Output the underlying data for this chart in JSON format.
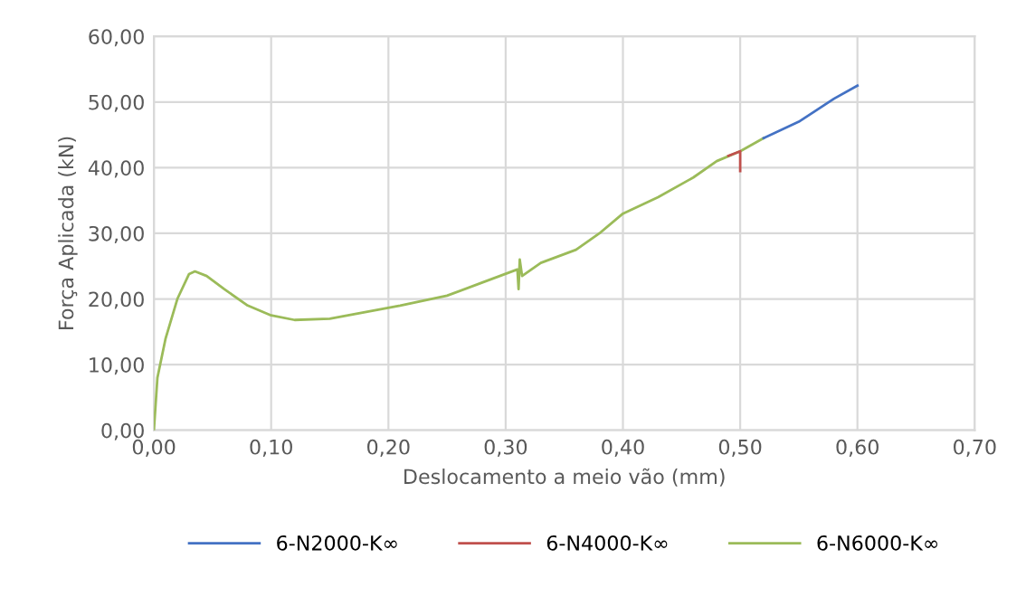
{
  "chart_data": {
    "type": "line",
    "xlabel": "Deslocamento a meio vão (mm)",
    "ylabel": "Força Aplicada (kN)",
    "xlim": [
      0,
      0.7
    ],
    "ylim": [
      0,
      60
    ],
    "xticks": [
      {
        "value": 0,
        "label": "0,00"
      },
      {
        "value": 0.1,
        "label": "0,10"
      },
      {
        "value": 0.2,
        "label": "0,20"
      },
      {
        "value": 0.3,
        "label": "0,30"
      },
      {
        "value": 0.4,
        "label": "0,40"
      },
      {
        "value": 0.5,
        "label": "0,50"
      },
      {
        "value": 0.6,
        "label": "0,60"
      },
      {
        "value": 0.7,
        "label": "0,70"
      }
    ],
    "yticks": [
      {
        "value": 0,
        "label": "0,00"
      },
      {
        "value": 10,
        "label": "10,00"
      },
      {
        "value": 20,
        "label": "20,00"
      },
      {
        "value": 30,
        "label": "30,00"
      },
      {
        "value": 40,
        "label": "40,00"
      },
      {
        "value": 50,
        "label": "50,00"
      },
      {
        "value": 60,
        "label": "60,00"
      }
    ],
    "grid": true,
    "legend": "bottom",
    "marker": "none",
    "line_style": "solid",
    "series": [
      {
        "name": "6-N2000-K∞",
        "color": "#4472c4",
        "x": [
          0.52,
          0.55,
          0.58,
          0.6
        ],
        "values": [
          44.5,
          47,
          50.5,
          52.5
        ]
      },
      {
        "name": "6-N4000-K∞",
        "color": "#c0504d",
        "x": [
          0.49,
          0.5,
          0.5
        ],
        "values": [
          41.8,
          42.5,
          39.5
        ]
      },
      {
        "name": "6-N6000-K∞",
        "color": "#9bbb59",
        "x": [
          0,
          0.003,
          0.01,
          0.02,
          0.03,
          0.035,
          0.045,
          0.06,
          0.08,
          0.1,
          0.12,
          0.15,
          0.18,
          0.21,
          0.25,
          0.28,
          0.31,
          0.311,
          0.312,
          0.314,
          0.33,
          0.36,
          0.38,
          0.4,
          0.43,
          0.46,
          0.48,
          0.5,
          0.52
        ],
        "values": [
          0,
          8,
          14,
          20,
          23.8,
          24.2,
          23.5,
          21.5,
          19,
          17.5,
          16.8,
          17,
          18,
          19,
          20.5,
          22.5,
          24.5,
          21.5,
          26,
          23.5,
          25.5,
          27.5,
          30,
          33,
          35.5,
          38.5,
          41,
          42.5,
          44.5
        ]
      }
    ]
  }
}
